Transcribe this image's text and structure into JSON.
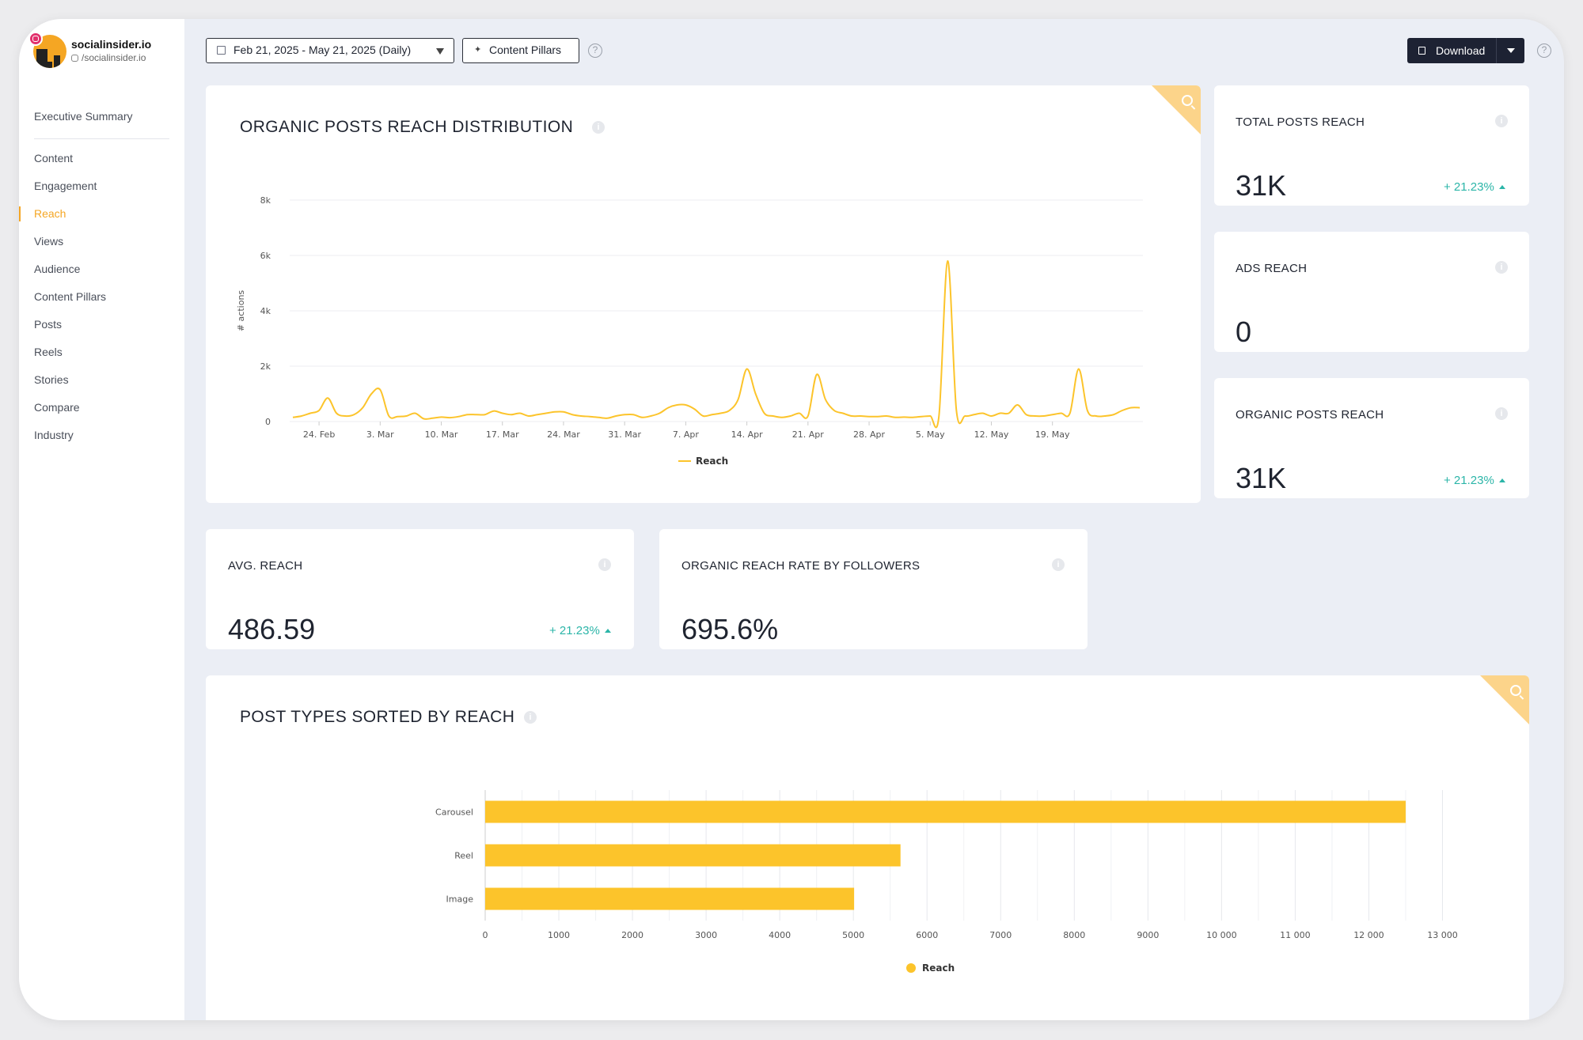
{
  "account": {
    "name": "socialinsider.io",
    "handle": "/socialinsider.io"
  },
  "sidebar": {
    "items": [
      {
        "label": "Executive Summary",
        "active": false
      },
      {
        "label": "Content",
        "active": false
      },
      {
        "label": "Engagement",
        "active": false
      },
      {
        "label": "Reach",
        "active": true
      },
      {
        "label": "Views",
        "active": false
      },
      {
        "label": "Audience",
        "active": false
      },
      {
        "label": "Content Pillars",
        "active": false
      },
      {
        "label": "Posts",
        "active": false
      },
      {
        "label": "Reels",
        "active": false
      },
      {
        "label": "Stories",
        "active": false
      },
      {
        "label": "Compare",
        "active": false
      },
      {
        "label": "Industry",
        "active": false
      }
    ]
  },
  "toolbar": {
    "date_range": "Feb 21, 2025 - May 21, 2025 (Daily)",
    "content_pillars": "Content Pillars",
    "help": "?",
    "download": "Download"
  },
  "cards": {
    "reach_distribution": {
      "title": "ORGANIC POSTS REACH DISTRIBUTION",
      "info": "i"
    },
    "total_posts_reach": {
      "title": "TOTAL POSTS REACH",
      "value": "31K",
      "change": "+ 21.23%",
      "info": "i"
    },
    "ads_reach": {
      "title": "ADS REACH",
      "value": "0",
      "info": "i"
    },
    "organic_posts_reach": {
      "title": "ORGANIC POSTS REACH",
      "value": "31K",
      "change": "+ 21.23%",
      "info": "i"
    },
    "avg_reach": {
      "title": "AVG. REACH",
      "value": "486.59",
      "change": "+ 21.23%",
      "info": "i"
    },
    "organic_reach_rate": {
      "title": "ORGANIC REACH RATE BY FOLLOWERS",
      "value": "695.6%",
      "info": "i"
    },
    "post_types": {
      "title": "POST TYPES SORTED BY REACH",
      "info": "i"
    }
  },
  "colors": {
    "accent": "#f5a623",
    "series": "#fcc42b",
    "positive": "#2bb5a8",
    "dark_button": "#1d2233"
  },
  "chart_data": [
    {
      "type": "line",
      "title": "ORGANIC POSTS REACH DISTRIBUTION",
      "ylabel": "# actions",
      "ylim": [
        0,
        8000
      ],
      "y_ticks": [
        0,
        2000,
        4000,
        6000,
        8000
      ],
      "y_tick_labels": [
        "0",
        "2k",
        "4k",
        "6k",
        "8k"
      ],
      "x_tick_labels": [
        "24. Feb",
        "3. Mar",
        "10. Mar",
        "17. Mar",
        "24. Mar",
        "31. Mar",
        "7. Apr",
        "14. Apr",
        "21. Apr",
        "28. Apr",
        "5. May",
        "12. May",
        "19. May"
      ],
      "x_start": "Feb 21, 2025",
      "x_end": "May 21, 2025",
      "legend": "bottom-center",
      "series": [
        {
          "name": "Reach",
          "values": [
            150,
            200,
            300,
            400,
            850,
            300,
            200,
            250,
            500,
            1000,
            1150,
            200,
            180,
            200,
            300,
            100,
            120,
            160,
            140,
            180,
            250,
            250,
            250,
            380,
            300,
            250,
            300,
            200,
            250,
            300,
            350,
            350,
            250,
            200,
            180,
            150,
            120,
            200,
            250,
            250,
            150,
            200,
            300,
            500,
            600,
            600,
            450,
            200,
            250,
            300,
            400,
            800,
            1900,
            1000,
            300,
            200,
            150,
            200,
            300,
            200,
            1700,
            800,
            400,
            300,
            200,
            200,
            180,
            180,
            200,
            150,
            160,
            150,
            180,
            200,
            200,
            5800,
            400,
            200,
            250,
            300,
            200,
            300,
            300,
            600,
            250,
            200,
            200,
            250,
            300,
            300,
            1900,
            400,
            200,
            200,
            250,
            400,
            500,
            500
          ]
        }
      ]
    },
    {
      "type": "bar",
      "orientation": "horizontal",
      "title": "POST TYPES SORTED BY REACH",
      "categories": [
        "Carousel",
        "Reel",
        "Image"
      ],
      "series": [
        {
          "name": "Reach",
          "values": [
            12500,
            5640,
            5010
          ]
        }
      ],
      "xlim": [
        0,
        13500
      ],
      "x_ticks": [
        0,
        1000,
        2000,
        3000,
        4000,
        5000,
        6000,
        7000,
        8000,
        9000,
        10000,
        11000,
        12000,
        13000
      ],
      "x_tick_labels": [
        "0",
        "1000",
        "2000",
        "3000",
        "4000",
        "5000",
        "6000",
        "7000",
        "8000",
        "9000",
        "10 000",
        "11 000",
        "12 000",
        "13 000"
      ],
      "legend": "bottom-center"
    }
  ]
}
